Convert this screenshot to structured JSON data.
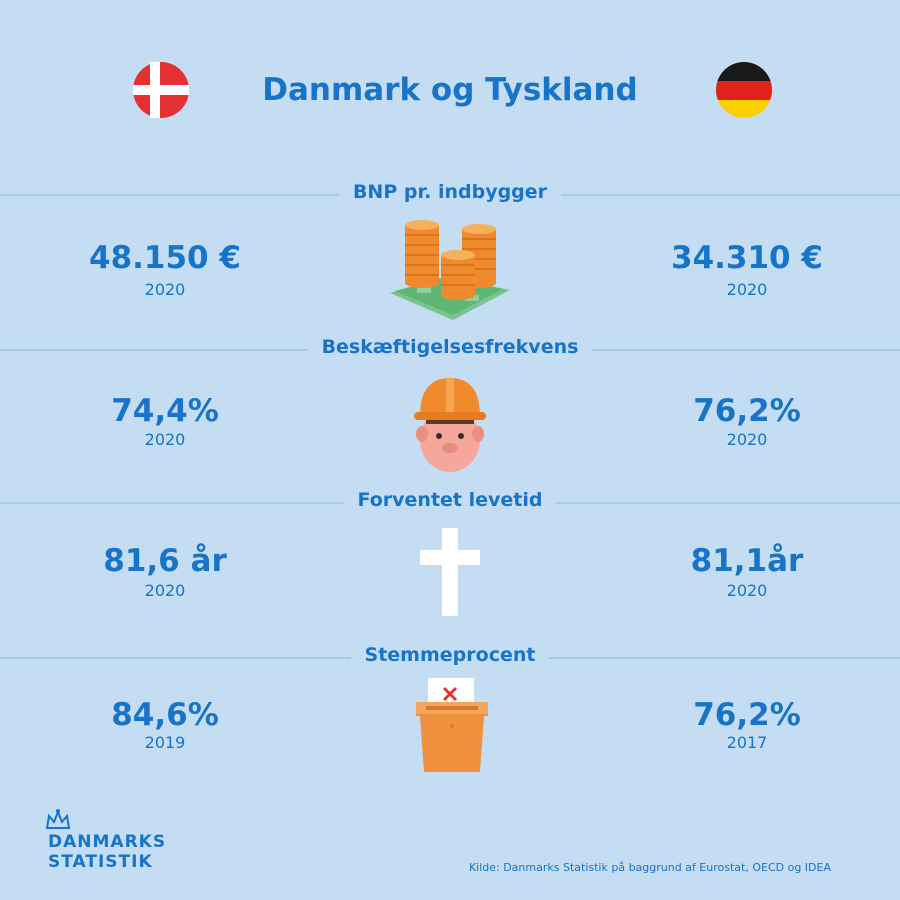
{
  "header": {
    "title": "Danmark og Tyskland"
  },
  "sections": [
    {
      "title": "BNP pr. indbygger",
      "dk": {
        "value": "48.150 €",
        "year": "2020"
      },
      "de": {
        "value": "34.310 €",
        "year": "2020"
      },
      "icon": "coins-money-icon"
    },
    {
      "title": "Beskæftigelsesfrekvens",
      "dk": {
        "value": "74,4%",
        "year": "2020"
      },
      "de": {
        "value": "76,2%",
        "year": "2020"
      },
      "icon": "worker-hardhat-icon"
    },
    {
      "title": "Forventet levetid",
      "dk": {
        "value": "81,6 år",
        "year": "2020"
      },
      "de": {
        "value": "81,1år",
        "year": "2020"
      },
      "icon": "cross-icon"
    },
    {
      "title": "Stemmeprocent",
      "dk": {
        "value": "84,6%",
        "year": "2019"
      },
      "de": {
        "value": "76,2%",
        "year": "2017"
      },
      "icon": "ballot-box-icon"
    }
  ],
  "logo": {
    "line1": "DANMARKS",
    "line2": "STATISTIK"
  },
  "footer": {
    "source": "Kilde: Danmarks Statistik på baggrund af Eurostat, OECD og IDEA"
  },
  "colors": {
    "background": "#c4ddf3",
    "text": "#1874c9",
    "orange": "#f0913f"
  }
}
